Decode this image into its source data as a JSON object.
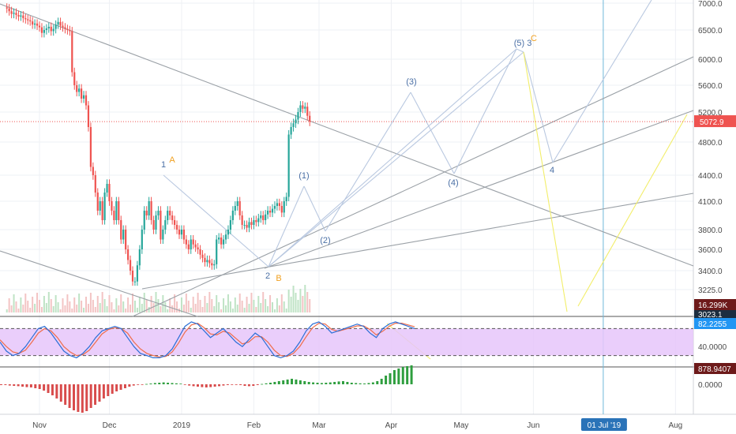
{
  "chart_data": [
    {
      "type": "candlestick",
      "title": "",
      "ylim": [
        2950,
        7050
      ],
      "y_ticks": [
        "7000.0",
        "6500.0",
        "6000.0",
        "5600.0",
        "5200.0",
        "4800.0",
        "4400.0",
        "4100.0",
        "3800.0",
        "3600.0",
        "3400.0",
        "3225.0"
      ],
      "y_tick_values": [
        7000,
        6500,
        6000,
        5600,
        5200,
        4800,
        4400,
        4100,
        3800,
        3600,
        3400,
        3225
      ],
      "x_ticks": [
        "Nov",
        "Dec",
        "2019",
        "Feb",
        "Mar",
        "Apr",
        "May",
        "Jun",
        "Aug"
      ],
      "x_tick_days": [
        0,
        30,
        61,
        92,
        120,
        151,
        181,
        212,
        273
      ],
      "x_highlight": {
        "label": "01 Jul '19",
        "day": 242
      },
      "last_price": {
        "label": "5072.9",
        "value": 5072.9
      },
      "volume_badge": {
        "label": "16.299K"
      },
      "lower_badge": {
        "label": "3023.1"
      },
      "candle_days_start": -14,
      "closes": [
        6900,
        6850,
        6800,
        6820,
        6780,
        6750,
        6770,
        6720,
        6700,
        6680,
        6660,
        6600,
        6620,
        6580,
        6550,
        6450,
        6500,
        6530,
        6560,
        6480,
        6520,
        6600,
        6650,
        6580,
        6550,
        6520,
        6500,
        6480,
        5800,
        5600,
        5500,
        5550,
        5400,
        5450,
        5300,
        5000,
        4500,
        4400,
        4200,
        4000,
        4100,
        3900,
        4200,
        4300,
        4100,
        4000,
        3900,
        4100,
        3900,
        3700,
        3800,
        3600,
        3500,
        3400,
        3300,
        3300,
        3450,
        3600,
        3800,
        4000,
        3950,
        4100,
        3900,
        3800,
        3950,
        4000,
        3700,
        3800,
        3900,
        4000,
        3950,
        3900,
        3850,
        3800,
        3750,
        3800,
        3700,
        3650,
        3600,
        3700,
        3650,
        3620,
        3600,
        3550,
        3520,
        3480,
        3500,
        3470,
        3450,
        3460,
        3700,
        3720,
        3650,
        3700,
        3750,
        3800,
        3900,
        4000,
        4050,
        4100,
        3950,
        3850,
        3850,
        3820,
        3880,
        3850,
        3900,
        3880,
        3920,
        3950,
        3900,
        3960,
        4000,
        3980,
        4020,
        4050,
        4080,
        4050,
        3980,
        4100,
        4150,
        4900,
        5000,
        5050,
        5100,
        5200,
        5300,
        5250,
        5280,
        5150,
        5072.9
      ],
      "annotations": {
        "blue": [
          "(3)",
          "(5) 3",
          "(1)",
          "(2)",
          "(4)",
          "4",
          "2",
          "1"
        ],
        "orange": [
          "A",
          "B",
          "C"
        ]
      }
    },
    {
      "type": "oscillator",
      "name": "Stochastic RSI",
      "ylim": [
        0,
        100
      ],
      "y_ticks": [
        "40.0000"
      ],
      "y_tick_values": [
        40
      ],
      "band": [
        20,
        80
      ],
      "value_badge": {
        "label": "82.2255"
      },
      "k": [
        50,
        30,
        20,
        25,
        40,
        60,
        80,
        85,
        70,
        50,
        30,
        20,
        15,
        25,
        40,
        60,
        75,
        80,
        85,
        80,
        60,
        40,
        25,
        20,
        15,
        15,
        20,
        35,
        60,
        85,
        95,
        90,
        75,
        60,
        70,
        80,
        65,
        50,
        40,
        55,
        70,
        60,
        40,
        20,
        15,
        20,
        30,
        50,
        75,
        90,
        95,
        85,
        70,
        75,
        80,
        85,
        90,
        85,
        70,
        60,
        80,
        90,
        95,
        90,
        85,
        80
      ],
      "d": [
        55,
        40,
        28,
        25,
        32,
        50,
        70,
        80,
        75,
        60,
        40,
        28,
        20,
        22,
        32,
        50,
        68,
        78,
        82,
        80,
        70,
        50,
        35,
        25,
        20,
        17,
        18,
        28,
        48,
        72,
        88,
        92,
        82,
        68,
        66,
        74,
        70,
        58,
        46,
        50,
        62,
        62,
        50,
        32,
        20,
        18,
        25,
        40,
        62,
        82,
        92,
        90,
        78,
        74,
        78,
        82,
        86,
        86,
        78,
        66,
        74,
        85,
        92,
        92,
        88,
        84
      ]
    },
    {
      "type": "histogram",
      "name": "MACD histogram",
      "y_ticks": [
        "0.0000"
      ],
      "value_badge": {
        "label": "878.9407"
      },
      "values": [
        -5,
        -5,
        -8,
        -10,
        -12,
        -15,
        -18,
        -20,
        -25,
        -30,
        -40,
        -55,
        -70,
        -90,
        -110,
        -130,
        -150,
        -165,
        -175,
        -180,
        -170,
        -150,
        -130,
        -110,
        -90,
        -75,
        -60,
        -45,
        -35,
        -25,
        -15,
        -8,
        -4,
        -2,
        2,
        5,
        8,
        10,
        12,
        10,
        8,
        6,
        4,
        -4,
        -8,
        -12,
        -15,
        -18,
        -20,
        -18,
        -15,
        -12,
        -8,
        -5,
        -3,
        -2,
        -5,
        -10,
        -12,
        -10,
        -5,
        2,
        6,
        10,
        15,
        20,
        25,
        30,
        35,
        30,
        25,
        20,
        15,
        12,
        10,
        8,
        10,
        12,
        15,
        18,
        20,
        15,
        10,
        8,
        6,
        5,
        8,
        12,
        20,
        35,
        55,
        70,
        90,
        100,
        110,
        115,
        120
      ]
    }
  ],
  "colors": {
    "up": "#26a69a",
    "down": "#ef5350",
    "wave_blue": "#4a6fa5",
    "wave_orange": "#f0a020",
    "grid": "#eef0f4",
    "band_fill": "#e6c6fa",
    "last_price_bg": "#ef5350",
    "oscillator_badge_bg": "#2196f3",
    "dark_badge_bg": "#6d1a1a",
    "timeline_highlight_bg": "#2a73b8"
  }
}
